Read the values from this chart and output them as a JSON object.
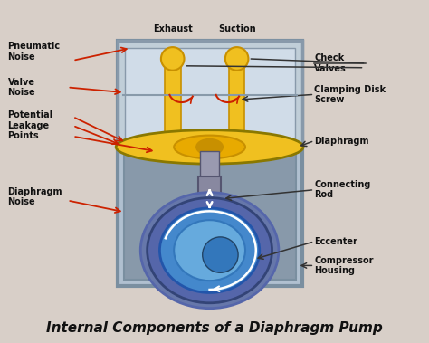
{
  "title": "Internal Components of a Diaphragm Pump",
  "title_fontsize": 11,
  "background_color": "#d8cfc8",
  "labels": {
    "pneumatic_noise": "Pneumatic\nNoise",
    "valve_noise": "Valve\nNoise",
    "potential_leakage": "Potential\nLeakage\nPoints",
    "diaphragm_noise": "Diaphragm\nNoise",
    "exhaust": "Exhaust",
    "suction": "Suction",
    "check_valves": "Check\nValves",
    "clamping_disk": "Clamping Disk\nScrew",
    "diaphragm": "Diaphragm",
    "connecting_rod": "Connecting\nRod",
    "eccenter": "Eccenter",
    "compressor_housing": "Compressor\nHousing"
  },
  "colors": {
    "bg": "#d8cfc8",
    "housing_border": "#7a8fa0",
    "housing_fill": "#b0c0d0",
    "housing_inner_fill": "#8899aa",
    "pump_wall": "#6a7f90",
    "top_chamber_fill": "#c0ced8",
    "top_chamber_border": "#8899aa",
    "top_inner_fill": "#d0dce8",
    "yellow": "#f0c020",
    "yellow_dark": "#c89000",
    "yellow_mid": "#e8aa00",
    "diaphragm_edge": "#8a7800",
    "rod_fill": "#8888a0",
    "rod_border": "#555570",
    "rod_neck_fill": "#9a9ab0",
    "ecc_bg": "#6677aa",
    "ecc_outer": "#5566aa",
    "ecc_ring1": "#4488cc",
    "ecc_ring2": "#66aadd",
    "ecc_center": "#3377bb",
    "label_color": "#111111",
    "red_arrow": "#cc2200",
    "white": "#ffffff",
    "connector_line": "#333333",
    "sep_line": "#889aaa"
  }
}
